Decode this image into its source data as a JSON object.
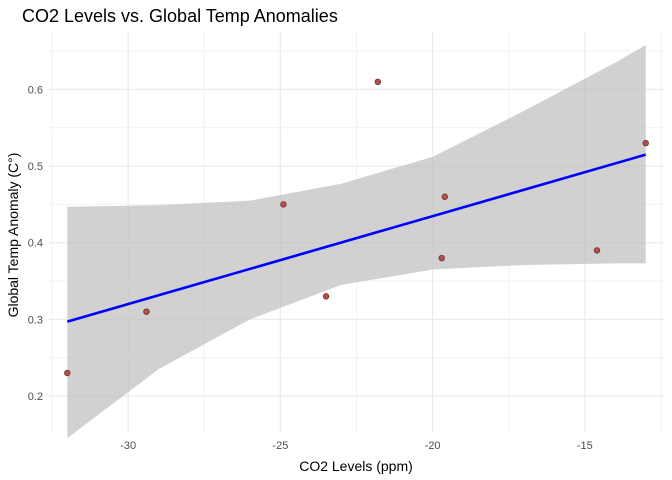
{
  "chart_data": {
    "type": "scatter",
    "title": "CO2 Levels vs. Global Temp Anomalies",
    "xlabel": "CO2 Levels (ppm)",
    "ylabel": "Global Temp Anomaly (C°)",
    "xlim": [
      -32.6,
      -12.4
    ],
    "ylim": [
      0.153,
      0.675
    ],
    "x_ticks": [
      -30,
      -25,
      -20,
      -15
    ],
    "x_tick_labels": [
      "-30",
      "-25",
      "-20",
      "-15"
    ],
    "y_ticks": [
      0.2,
      0.3,
      0.4,
      0.5,
      0.6
    ],
    "y_tick_labels": [
      "0.2",
      "0.3",
      "0.4",
      "0.5",
      "0.6"
    ],
    "grid": true,
    "points": [
      {
        "x": -32.0,
        "y": 0.23
      },
      {
        "x": -29.4,
        "y": 0.31
      },
      {
        "x": -24.9,
        "y": 0.45
      },
      {
        "x": -23.5,
        "y": 0.33
      },
      {
        "x": -21.8,
        "y": 0.61
      },
      {
        "x": -19.7,
        "y": 0.38
      },
      {
        "x": -19.6,
        "y": 0.46
      },
      {
        "x": -14.6,
        "y": 0.39
      },
      {
        "x": -13.0,
        "y": 0.53
      }
    ],
    "fit_line": {
      "x": [
        -32.0,
        -13.0
      ],
      "y": [
        0.297,
        0.515
      ],
      "color": "#0000ff"
    },
    "confidence_band": {
      "x": [
        -32.0,
        -29.0,
        -26.0,
        -23.0,
        -20.0,
        -17.0,
        -14.0,
        -13.0
      ],
      "lower": [
        0.145,
        0.235,
        0.3,
        0.345,
        0.365,
        0.371,
        0.373,
        0.373
      ],
      "upper": [
        0.447,
        0.449,
        0.455,
        0.477,
        0.512,
        0.572,
        0.635,
        0.658
      ],
      "color": "#bfbfbf"
    },
    "point_color": "#b05050",
    "point_stroke": "#7a2e2e"
  }
}
